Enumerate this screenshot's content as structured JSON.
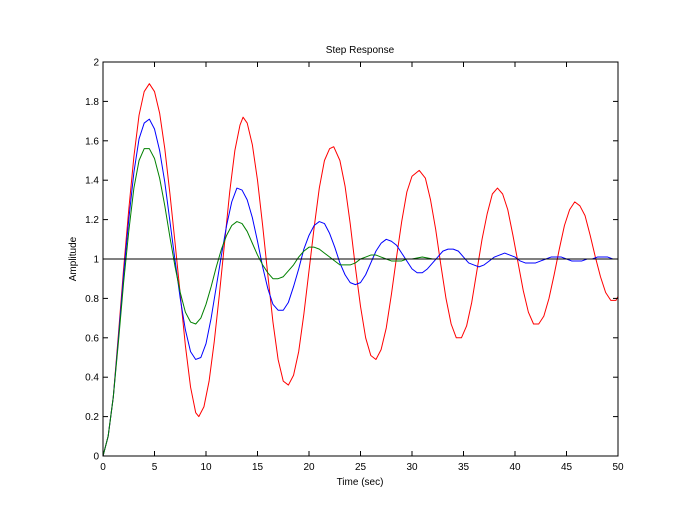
{
  "chart_data": {
    "type": "line",
    "title": "Step Response",
    "xlabel": "Time (sec)",
    "ylabel": "Amplitude",
    "xlim": [
      0,
      50
    ],
    "ylim": [
      0,
      2
    ],
    "xticks": [
      "0",
      "5",
      "10",
      "15",
      "20",
      "25",
      "30",
      "35",
      "40",
      "45",
      "50"
    ],
    "yticks": [
      "0",
      "0.2",
      "0.4",
      "0.6",
      "0.8",
      "1",
      "1.2",
      "1.4",
      "1.6",
      "1.8",
      "2"
    ],
    "grid": false,
    "reference_line": {
      "y": 1,
      "color": "#000000"
    },
    "series": [
      {
        "color": "#ff0000",
        "points": [
          [
            0,
            0
          ],
          [
            0.5,
            0.1
          ],
          [
            1,
            0.3
          ],
          [
            1.5,
            0.62
          ],
          [
            2,
            0.95
          ],
          [
            2.5,
            1.25
          ],
          [
            3,
            1.52
          ],
          [
            3.5,
            1.73
          ],
          [
            4,
            1.85
          ],
          [
            4.5,
            1.89
          ],
          [
            5,
            1.85
          ],
          [
            5.5,
            1.74
          ],
          [
            6,
            1.56
          ],
          [
            6.5,
            1.33
          ],
          [
            7,
            1.08
          ],
          [
            7.5,
            0.82
          ],
          [
            8,
            0.56
          ],
          [
            8.5,
            0.35
          ],
          [
            9,
            0.22
          ],
          [
            9.3,
            0.2
          ],
          [
            9.8,
            0.25
          ],
          [
            10.3,
            0.38
          ],
          [
            10.8,
            0.58
          ],
          [
            11.3,
            0.82
          ],
          [
            11.8,
            1.08
          ],
          [
            12.3,
            1.34
          ],
          [
            12.8,
            1.55
          ],
          [
            13.3,
            1.68
          ],
          [
            13.6,
            1.72
          ],
          [
            14,
            1.69
          ],
          [
            14.5,
            1.58
          ],
          [
            15,
            1.4
          ],
          [
            15.5,
            1.17
          ],
          [
            16,
            0.92
          ],
          [
            16.5,
            0.68
          ],
          [
            17,
            0.49
          ],
          [
            17.5,
            0.38
          ],
          [
            18,
            0.36
          ],
          [
            18.5,
            0.41
          ],
          [
            19,
            0.53
          ],
          [
            19.5,
            0.72
          ],
          [
            20,
            0.94
          ],
          [
            20.5,
            1.16
          ],
          [
            21,
            1.36
          ],
          [
            21.5,
            1.5
          ],
          [
            22,
            1.56
          ],
          [
            22.4,
            1.57
          ],
          [
            23,
            1.5
          ],
          [
            23.5,
            1.37
          ],
          [
            24,
            1.18
          ],
          [
            24.5,
            0.96
          ],
          [
            25,
            0.76
          ],
          [
            25.5,
            0.6
          ],
          [
            26,
            0.51
          ],
          [
            26.5,
            0.49
          ],
          [
            27,
            0.54
          ],
          [
            27.5,
            0.65
          ],
          [
            28,
            0.82
          ],
          [
            28.5,
            1.01
          ],
          [
            29,
            1.19
          ],
          [
            29.5,
            1.34
          ],
          [
            30,
            1.42
          ],
          [
            30.7,
            1.45
          ],
          [
            31.3,
            1.41
          ],
          [
            31.8,
            1.3
          ],
          [
            32.3,
            1.15
          ],
          [
            32.8,
            0.97
          ],
          [
            33.3,
            0.8
          ],
          [
            33.8,
            0.67
          ],
          [
            34.3,
            0.6
          ],
          [
            34.8,
            0.6
          ],
          [
            35.3,
            0.66
          ],
          [
            35.8,
            0.78
          ],
          [
            36.3,
            0.94
          ],
          [
            36.8,
            1.1
          ],
          [
            37.3,
            1.23
          ],
          [
            37.8,
            1.33
          ],
          [
            38.3,
            1.36
          ],
          [
            38.8,
            1.33
          ],
          [
            39.3,
            1.25
          ],
          [
            39.8,
            1.12
          ],
          [
            40.3,
            0.98
          ],
          [
            40.8,
            0.84
          ],
          [
            41.3,
            0.73
          ],
          [
            41.8,
            0.67
          ],
          [
            42.3,
            0.67
          ],
          [
            42.8,
            0.71
          ],
          [
            43.3,
            0.8
          ],
          [
            43.8,
            0.92
          ],
          [
            44.3,
            1.05
          ],
          [
            44.8,
            1.17
          ],
          [
            45.3,
            1.25
          ],
          [
            45.8,
            1.29
          ],
          [
            46.3,
            1.27
          ],
          [
            46.8,
            1.22
          ],
          [
            47.3,
            1.12
          ],
          [
            47.8,
            1.01
          ],
          [
            48.3,
            0.91
          ],
          [
            48.8,
            0.83
          ],
          [
            49.3,
            0.79
          ],
          [
            49.8,
            0.79
          ],
          [
            50,
            0.81
          ]
        ]
      },
      {
        "color": "#0000ff",
        "points": [
          [
            0,
            0
          ],
          [
            0.5,
            0.1
          ],
          [
            1,
            0.3
          ],
          [
            1.5,
            0.6
          ],
          [
            2,
            0.92
          ],
          [
            2.5,
            1.2
          ],
          [
            3,
            1.44
          ],
          [
            3.5,
            1.61
          ],
          [
            4,
            1.69
          ],
          [
            4.5,
            1.71
          ],
          [
            5,
            1.66
          ],
          [
            5.5,
            1.55
          ],
          [
            6,
            1.39
          ],
          [
            6.5,
            1.19
          ],
          [
            7,
            0.99
          ],
          [
            7.5,
            0.8
          ],
          [
            8,
            0.64
          ],
          [
            8.5,
            0.53
          ],
          [
            9,
            0.49
          ],
          [
            9.5,
            0.5
          ],
          [
            10,
            0.57
          ],
          [
            10.5,
            0.7
          ],
          [
            11,
            0.86
          ],
          [
            11.5,
            1.02
          ],
          [
            12,
            1.17
          ],
          [
            12.5,
            1.29
          ],
          [
            13,
            1.36
          ],
          [
            13.5,
            1.35
          ],
          [
            14,
            1.3
          ],
          [
            14.5,
            1.21
          ],
          [
            15,
            1.09
          ],
          [
            15.5,
            0.96
          ],
          [
            16,
            0.85
          ],
          [
            16.5,
            0.77
          ],
          [
            17,
            0.74
          ],
          [
            17.5,
            0.74
          ],
          [
            18,
            0.78
          ],
          [
            18.5,
            0.86
          ],
          [
            19,
            0.95
          ],
          [
            19.5,
            1.05
          ],
          [
            20,
            1.12
          ],
          [
            20.5,
            1.17
          ],
          [
            21,
            1.19
          ],
          [
            21.5,
            1.18
          ],
          [
            22,
            1.13
          ],
          [
            22.5,
            1.06
          ],
          [
            23,
            0.98
          ],
          [
            23.5,
            0.92
          ],
          [
            24,
            0.88
          ],
          [
            24.5,
            0.87
          ],
          [
            25,
            0.88
          ],
          [
            25.5,
            0.92
          ],
          [
            26,
            0.98
          ],
          [
            26.5,
            1.04
          ],
          [
            27,
            1.08
          ],
          [
            27.5,
            1.1
          ],
          [
            28,
            1.09
          ],
          [
            28.5,
            1.07
          ],
          [
            29,
            1.03
          ],
          [
            29.5,
            0.99
          ],
          [
            30,
            0.95
          ],
          [
            30.5,
            0.93
          ],
          [
            31,
            0.93
          ],
          [
            31.5,
            0.95
          ],
          [
            32,
            0.98
          ],
          [
            32.5,
            1.01
          ],
          [
            33,
            1.04
          ],
          [
            33.5,
            1.05
          ],
          [
            34,
            1.05
          ],
          [
            34.5,
            1.04
          ],
          [
            35,
            1.01
          ],
          [
            35.5,
            0.98
          ],
          [
            36,
            0.97
          ],
          [
            36.5,
            0.96
          ],
          [
            37,
            0.97
          ],
          [
            37.5,
            0.99
          ],
          [
            38,
            1.01
          ],
          [
            38.5,
            1.02
          ],
          [
            39,
            1.03
          ],
          [
            39.5,
            1.02
          ],
          [
            40,
            1.01
          ],
          [
            40.5,
            0.99
          ],
          [
            41,
            0.98
          ],
          [
            41.5,
            0.98
          ],
          [
            42,
            0.98
          ],
          [
            42.5,
            0.99
          ],
          [
            43,
            1.0
          ],
          [
            43.5,
            1.01
          ],
          [
            44,
            1.01
          ],
          [
            44.5,
            1.01
          ],
          [
            45,
            1.0
          ],
          [
            45.5,
            0.99
          ],
          [
            46,
            0.99
          ],
          [
            46.5,
            0.99
          ],
          [
            47,
            1.0
          ],
          [
            47.5,
            1.0
          ],
          [
            48,
            1.01
          ],
          [
            48.5,
            1.01
          ],
          [
            49,
            1.01
          ],
          [
            49.5,
            1.0
          ],
          [
            50,
            1.0
          ]
        ]
      },
      {
        "color": "#008000",
        "points": [
          [
            0,
            0
          ],
          [
            0.5,
            0.1
          ],
          [
            1,
            0.3
          ],
          [
            1.5,
            0.58
          ],
          [
            2,
            0.88
          ],
          [
            2.5,
            1.14
          ],
          [
            3,
            1.36
          ],
          [
            3.5,
            1.5
          ],
          [
            4,
            1.56
          ],
          [
            4.5,
            1.56
          ],
          [
            5,
            1.51
          ],
          [
            5.5,
            1.41
          ],
          [
            6,
            1.27
          ],
          [
            6.5,
            1.11
          ],
          [
            7,
            0.96
          ],
          [
            7.5,
            0.83
          ],
          [
            8,
            0.73
          ],
          [
            8.5,
            0.68
          ],
          [
            9,
            0.67
          ],
          [
            9.5,
            0.7
          ],
          [
            10,
            0.77
          ],
          [
            10.5,
            0.86
          ],
          [
            11,
            0.96
          ],
          [
            11.5,
            1.05
          ],
          [
            12,
            1.12
          ],
          [
            12.5,
            1.17
          ],
          [
            13,
            1.19
          ],
          [
            13.5,
            1.18
          ],
          [
            14,
            1.14
          ],
          [
            14.5,
            1.08
          ],
          [
            15,
            1.02
          ],
          [
            15.5,
            0.97
          ],
          [
            16,
            0.93
          ],
          [
            16.5,
            0.9
          ],
          [
            17,
            0.9
          ],
          [
            17.5,
            0.91
          ],
          [
            18,
            0.94
          ],
          [
            18.5,
            0.97
          ],
          [
            19,
            1.01
          ],
          [
            19.5,
            1.04
          ],
          [
            20,
            1.06
          ],
          [
            20.5,
            1.06
          ],
          [
            21,
            1.05
          ],
          [
            21.5,
            1.03
          ],
          [
            22,
            1.01
          ],
          [
            22.5,
            0.99
          ],
          [
            23,
            0.97
          ],
          [
            23.5,
            0.97
          ],
          [
            24,
            0.97
          ],
          [
            24.5,
            0.98
          ],
          [
            25,
            1.0
          ],
          [
            25.5,
            1.01
          ],
          [
            26,
            1.02
          ],
          [
            26.5,
            1.02
          ],
          [
            27,
            1.01
          ],
          [
            27.5,
            1.0
          ],
          [
            28,
            0.99
          ],
          [
            28.5,
            0.99
          ],
          [
            29,
            0.99
          ],
          [
            29.5,
            1.0
          ],
          [
            30,
            1.0
          ],
          [
            31,
            1.01
          ],
          [
            32,
            1.0
          ],
          [
            33,
            1.0
          ],
          [
            34,
            1.0
          ],
          [
            35,
            1.0
          ],
          [
            36,
            1.0
          ],
          [
            38,
            1.0
          ],
          [
            40,
            1.0
          ],
          [
            42,
            1.0
          ],
          [
            44,
            1.0
          ],
          [
            46,
            1.0
          ],
          [
            48,
            1.0
          ],
          [
            50,
            1.0
          ]
        ]
      }
    ]
  }
}
